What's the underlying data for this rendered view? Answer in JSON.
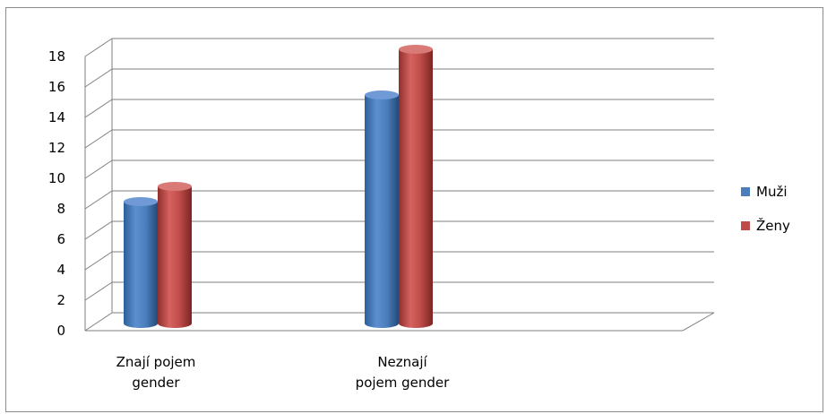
{
  "chart_data": {
    "type": "bar",
    "categories": [
      [
        "Znají pojem",
        "gender"
      ],
      [
        "Neznají",
        "pojem gender"
      ]
    ],
    "series": [
      {
        "name": "Muži",
        "values": [
          8,
          15
        ],
        "color": "#4a7ebb"
      },
      {
        "name": "Ženy",
        "values": [
          9,
          18
        ],
        "color": "#be4b48"
      }
    ],
    "yticks": [
      "0",
      "2",
      "4",
      "6",
      "8",
      "10",
      "12",
      "14",
      "16",
      "18"
    ],
    "ylim": [
      0,
      18
    ],
    "grid": true,
    "legend_position": "right"
  }
}
